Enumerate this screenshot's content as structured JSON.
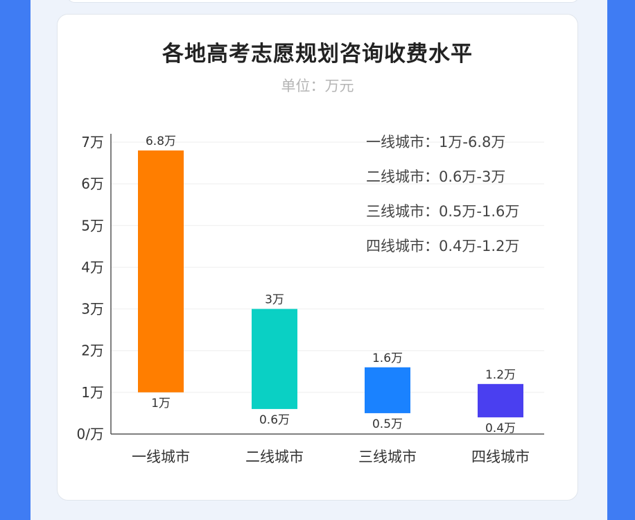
{
  "chart_data": {
    "type": "bar",
    "title": "各地高考志愿规划咨询收费水平",
    "subtitle": "单位：万元",
    "categories": [
      "一线城市",
      "二线城市",
      "三线城市",
      "四线城市"
    ],
    "low": [
      1,
      0.6,
      0.5,
      0.4
    ],
    "high": [
      6.8,
      3,
      1.6,
      1.2
    ],
    "low_labels": [
      "1万",
      "0.6万",
      "0.5万",
      "0.4万"
    ],
    "high_labels": [
      "6.8万",
      "3万",
      "1.6万",
      "1.2万"
    ],
    "colors": [
      "#ff7e00",
      "#0ad0c4",
      "#1a82ff",
      "#4a3ff0"
    ],
    "ylim": [
      0,
      7
    ],
    "yticks": [
      0,
      1,
      2,
      3,
      4,
      5,
      6,
      7
    ],
    "ytick_labels": [
      "0/万",
      "1万",
      "2万",
      "3万",
      "4万",
      "5万",
      "6万",
      "7万"
    ],
    "grid": true,
    "ranges": [
      "一线城市：1万-6.8万",
      "二线城市：0.6万-3万",
      "三线城市：0.5万-1.6万",
      "四线城市：0.4万-1.2万"
    ]
  }
}
